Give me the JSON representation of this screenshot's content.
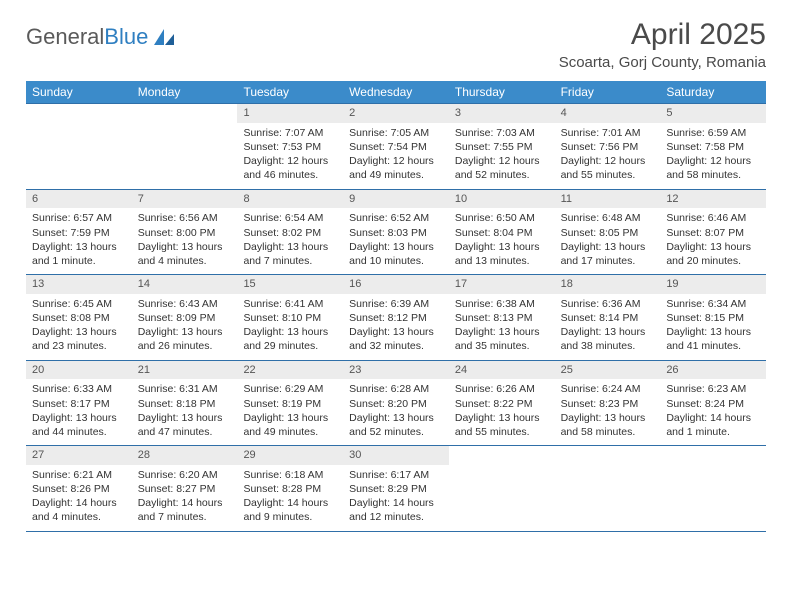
{
  "brand": {
    "part1": "General",
    "part2": "Blue"
  },
  "title": "April 2025",
  "location": "Scoarta, Gorj County, Romania",
  "colors": {
    "header_bg": "#3b8bca",
    "header_text": "#ffffff",
    "rule": "#2f6fa8",
    "daynum_bg": "#ececec",
    "body_text": "#333333",
    "title_text": "#4a4a4a",
    "logo_gray": "#5a5a5a",
    "logo_blue": "#2f7fc1",
    "page_bg": "#ffffff"
  },
  "typography": {
    "title_fontsize": 30,
    "location_fontsize": 15,
    "weekday_fontsize": 12,
    "body_fontsize": 10.5,
    "font_family": "Arial"
  },
  "weekdays": [
    "Sunday",
    "Monday",
    "Tuesday",
    "Wednesday",
    "Thursday",
    "Friday",
    "Saturday"
  ],
  "weeks": [
    [
      {
        "empty": true
      },
      {
        "empty": true
      },
      {
        "num": "1",
        "sunrise": "Sunrise: 7:07 AM",
        "sunset": "Sunset: 7:53 PM",
        "daylight": "Daylight: 12 hours and 46 minutes."
      },
      {
        "num": "2",
        "sunrise": "Sunrise: 7:05 AM",
        "sunset": "Sunset: 7:54 PM",
        "daylight": "Daylight: 12 hours and 49 minutes."
      },
      {
        "num": "3",
        "sunrise": "Sunrise: 7:03 AM",
        "sunset": "Sunset: 7:55 PM",
        "daylight": "Daylight: 12 hours and 52 minutes."
      },
      {
        "num": "4",
        "sunrise": "Sunrise: 7:01 AM",
        "sunset": "Sunset: 7:56 PM",
        "daylight": "Daylight: 12 hours and 55 minutes."
      },
      {
        "num": "5",
        "sunrise": "Sunrise: 6:59 AM",
        "sunset": "Sunset: 7:58 PM",
        "daylight": "Daylight: 12 hours and 58 minutes."
      }
    ],
    [
      {
        "num": "6",
        "sunrise": "Sunrise: 6:57 AM",
        "sunset": "Sunset: 7:59 PM",
        "daylight": "Daylight: 13 hours and 1 minute."
      },
      {
        "num": "7",
        "sunrise": "Sunrise: 6:56 AM",
        "sunset": "Sunset: 8:00 PM",
        "daylight": "Daylight: 13 hours and 4 minutes."
      },
      {
        "num": "8",
        "sunrise": "Sunrise: 6:54 AM",
        "sunset": "Sunset: 8:02 PM",
        "daylight": "Daylight: 13 hours and 7 minutes."
      },
      {
        "num": "9",
        "sunrise": "Sunrise: 6:52 AM",
        "sunset": "Sunset: 8:03 PM",
        "daylight": "Daylight: 13 hours and 10 minutes."
      },
      {
        "num": "10",
        "sunrise": "Sunrise: 6:50 AM",
        "sunset": "Sunset: 8:04 PM",
        "daylight": "Daylight: 13 hours and 13 minutes."
      },
      {
        "num": "11",
        "sunrise": "Sunrise: 6:48 AM",
        "sunset": "Sunset: 8:05 PM",
        "daylight": "Daylight: 13 hours and 17 minutes."
      },
      {
        "num": "12",
        "sunrise": "Sunrise: 6:46 AM",
        "sunset": "Sunset: 8:07 PM",
        "daylight": "Daylight: 13 hours and 20 minutes."
      }
    ],
    [
      {
        "num": "13",
        "sunrise": "Sunrise: 6:45 AM",
        "sunset": "Sunset: 8:08 PM",
        "daylight": "Daylight: 13 hours and 23 minutes."
      },
      {
        "num": "14",
        "sunrise": "Sunrise: 6:43 AM",
        "sunset": "Sunset: 8:09 PM",
        "daylight": "Daylight: 13 hours and 26 minutes."
      },
      {
        "num": "15",
        "sunrise": "Sunrise: 6:41 AM",
        "sunset": "Sunset: 8:10 PM",
        "daylight": "Daylight: 13 hours and 29 minutes."
      },
      {
        "num": "16",
        "sunrise": "Sunrise: 6:39 AM",
        "sunset": "Sunset: 8:12 PM",
        "daylight": "Daylight: 13 hours and 32 minutes."
      },
      {
        "num": "17",
        "sunrise": "Sunrise: 6:38 AM",
        "sunset": "Sunset: 8:13 PM",
        "daylight": "Daylight: 13 hours and 35 minutes."
      },
      {
        "num": "18",
        "sunrise": "Sunrise: 6:36 AM",
        "sunset": "Sunset: 8:14 PM",
        "daylight": "Daylight: 13 hours and 38 minutes."
      },
      {
        "num": "19",
        "sunrise": "Sunrise: 6:34 AM",
        "sunset": "Sunset: 8:15 PM",
        "daylight": "Daylight: 13 hours and 41 minutes."
      }
    ],
    [
      {
        "num": "20",
        "sunrise": "Sunrise: 6:33 AM",
        "sunset": "Sunset: 8:17 PM",
        "daylight": "Daylight: 13 hours and 44 minutes."
      },
      {
        "num": "21",
        "sunrise": "Sunrise: 6:31 AM",
        "sunset": "Sunset: 8:18 PM",
        "daylight": "Daylight: 13 hours and 47 minutes."
      },
      {
        "num": "22",
        "sunrise": "Sunrise: 6:29 AM",
        "sunset": "Sunset: 8:19 PM",
        "daylight": "Daylight: 13 hours and 49 minutes."
      },
      {
        "num": "23",
        "sunrise": "Sunrise: 6:28 AM",
        "sunset": "Sunset: 8:20 PM",
        "daylight": "Daylight: 13 hours and 52 minutes."
      },
      {
        "num": "24",
        "sunrise": "Sunrise: 6:26 AM",
        "sunset": "Sunset: 8:22 PM",
        "daylight": "Daylight: 13 hours and 55 minutes."
      },
      {
        "num": "25",
        "sunrise": "Sunrise: 6:24 AM",
        "sunset": "Sunset: 8:23 PM",
        "daylight": "Daylight: 13 hours and 58 minutes."
      },
      {
        "num": "26",
        "sunrise": "Sunrise: 6:23 AM",
        "sunset": "Sunset: 8:24 PM",
        "daylight": "Daylight: 14 hours and 1 minute."
      }
    ],
    [
      {
        "num": "27",
        "sunrise": "Sunrise: 6:21 AM",
        "sunset": "Sunset: 8:26 PM",
        "daylight": "Daylight: 14 hours and 4 minutes."
      },
      {
        "num": "28",
        "sunrise": "Sunrise: 6:20 AM",
        "sunset": "Sunset: 8:27 PM",
        "daylight": "Daylight: 14 hours and 7 minutes."
      },
      {
        "num": "29",
        "sunrise": "Sunrise: 6:18 AM",
        "sunset": "Sunset: 8:28 PM",
        "daylight": "Daylight: 14 hours and 9 minutes."
      },
      {
        "num": "30",
        "sunrise": "Sunrise: 6:17 AM",
        "sunset": "Sunset: 8:29 PM",
        "daylight": "Daylight: 14 hours and 12 minutes."
      },
      {
        "empty": true
      },
      {
        "empty": true
      },
      {
        "empty": true
      }
    ]
  ]
}
